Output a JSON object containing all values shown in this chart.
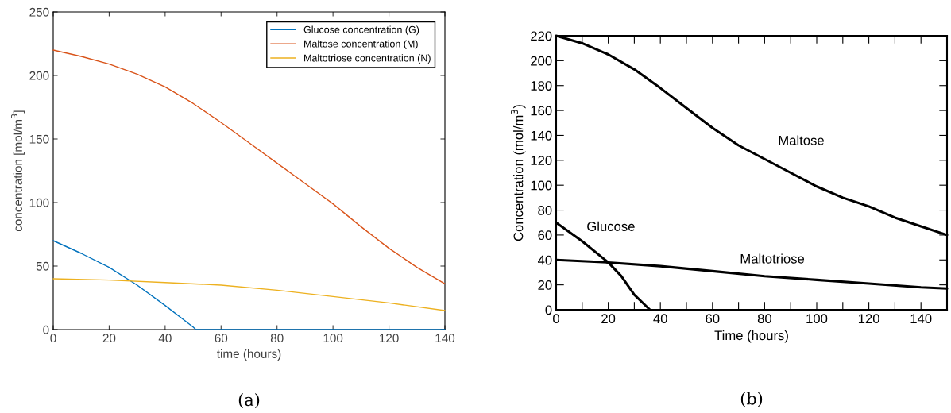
{
  "chart_data": [
    {
      "type": "line",
      "xlabel": "time (hours)",
      "ylabel": "concentration [mol/m$^{3}$]",
      "xlim": [
        0,
        140
      ],
      "ylim": [
        0,
        250
      ],
      "xticks": [
        0,
        20,
        40,
        60,
        80,
        100,
        120,
        140
      ],
      "yticks": [
        0,
        50,
        100,
        150,
        200,
        250
      ],
      "grid": false,
      "legend": "top right",
      "annotations": [
        "(a)"
      ],
      "series": [
        {
          "name": "Glucose concentration (G)",
          "color": "#0072bd",
          "x": [
            0,
            10,
            20,
            30,
            40,
            50,
            51,
            60,
            80,
            100,
            120,
            140
          ],
          "values": [
            70,
            60,
            49,
            35,
            19,
            2,
            0,
            0,
            0,
            0,
            0,
            0
          ]
        },
        {
          "name": "Maltose concentration (M)",
          "color": "#d95319",
          "x": [
            0,
            10,
            20,
            30,
            40,
            50,
            60,
            70,
            80,
            90,
            100,
            110,
            120,
            130,
            140
          ],
          "values": [
            220,
            215,
            209,
            201,
            191,
            178,
            163,
            147,
            131,
            115,
            99,
            81,
            64,
            49,
            36
          ]
        },
        {
          "name": "Maltotriose concentration (N)",
          "color": "#edb120",
          "x": [
            0,
            20,
            40,
            60,
            80,
            100,
            120,
            140
          ],
          "values": [
            40,
            39,
            37,
            35,
            31,
            26,
            21,
            15
          ]
        }
      ]
    },
    {
      "type": "line",
      "xlabel": "Time (hours)",
      "ylabel": "Concentration (mol/m$^{3}$)",
      "xlim": [
        0,
        150
      ],
      "ylim": [
        0,
        220
      ],
      "xticks": [
        0,
        {
          "value": 10,
          "label": null
        },
        20,
        {
          "value": 30,
          "label": null
        },
        40,
        {
          "value": 50,
          "label": null
        },
        60,
        {
          "value": 70,
          "label": null
        },
        80,
        {
          "value": 90,
          "label": null
        },
        100,
        {
          "value": 110,
          "label": null
        },
        120,
        {
          "value": 130,
          "label": null
        },
        140,
        {
          "value": 150,
          "label": null
        }
      ],
      "yticks": [
        0,
        20,
        40,
        60,
        80,
        100,
        120,
        140,
        160,
        180,
        200,
        220
      ],
      "grid": false,
      "annotations": [
        "Maltose",
        "Glucose",
        "Maltotriose",
        "(b)"
      ],
      "series": [
        {
          "color": "#000000",
          "x": [
            0,
            10,
            20,
            30,
            40,
            50,
            60,
            70,
            80,
            90,
            100,
            110,
            120,
            130,
            140,
            150
          ],
          "values": [
            220,
            214,
            205,
            193,
            178,
            162,
            146,
            132,
            121,
            110,
            99,
            90,
            83,
            74,
            67,
            60
          ]
        },
        {
          "color": "#000000",
          "x": [
            0,
            10,
            20,
            25,
            30,
            36
          ],
          "values": [
            70,
            55,
            38,
            27,
            12,
            0
          ]
        },
        {
          "color": "#000000",
          "x": [
            0,
            20,
            40,
            60,
            80,
            100,
            120,
            140,
            150
          ],
          "values": [
            40,
            38,
            35,
            31,
            27,
            24,
            21,
            18,
            17
          ]
        }
      ]
    }
  ]
}
